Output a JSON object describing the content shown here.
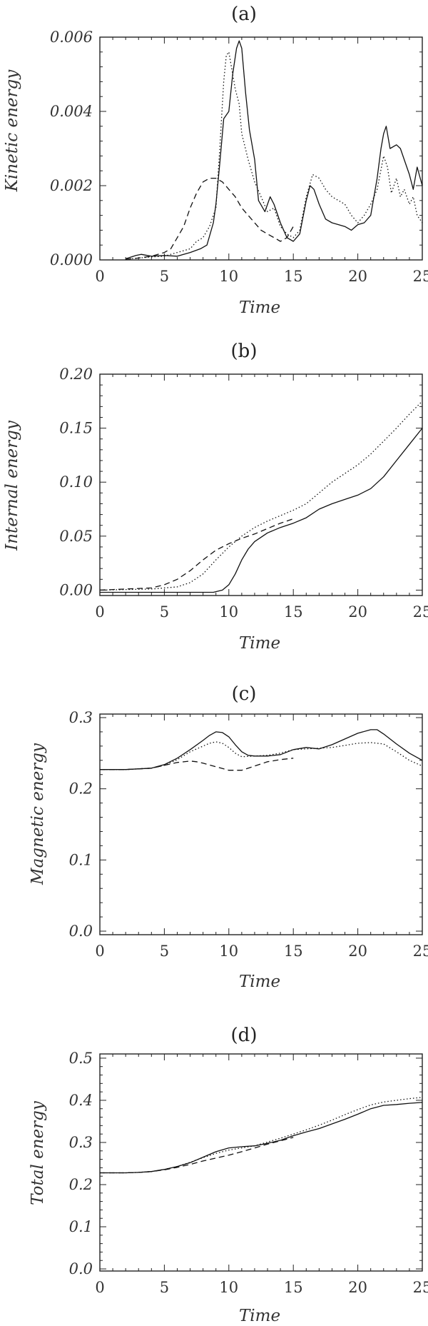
{
  "chart_data": [
    {
      "type": "line",
      "title": "(a)",
      "xlabel": "Time",
      "ylabel": "Kinetic energy",
      "xlim": [
        0,
        25
      ],
      "ylim": [
        0,
        0.006
      ],
      "xticks": [
        "0",
        "5",
        "10",
        "15",
        "20",
        "25"
      ],
      "yticks": [
        "0.000",
        "0.002",
        "0.004",
        "0.006"
      ],
      "series": [
        {
          "style": "solid",
          "x": [
            2.0,
            2.8,
            3.2,
            4.0,
            5.0,
            6.0,
            7.0,
            7.8,
            8.3,
            8.8,
            9.0,
            9.3,
            9.6,
            10.0,
            10.3,
            10.6,
            10.8,
            11.0,
            11.3,
            11.6,
            12.0,
            12.3,
            12.8,
            13.2,
            13.5,
            14.0,
            14.5,
            15.0,
            15.5,
            16.0,
            16.3,
            16.6,
            17.0,
            17.5,
            18.0,
            18.5,
            19.0,
            19.5,
            20.0,
            20.5,
            21.0,
            21.5,
            21.8,
            22.0,
            22.2,
            22.5,
            23.0,
            23.3,
            23.6,
            24.0,
            24.3,
            24.6,
            25.0
          ],
          "y": [
            3e-05,
            0.00012,
            0.00015,
            0.0001,
            0.00012,
            0.0001,
            0.0002,
            0.0003,
            0.0004,
            0.001,
            0.0015,
            0.0026,
            0.0038,
            0.004,
            0.005,
            0.0057,
            0.0059,
            0.0057,
            0.0045,
            0.0035,
            0.0027,
            0.0016,
            0.0013,
            0.0017,
            0.0015,
            0.001,
            0.0006,
            0.0005,
            0.0007,
            0.0016,
            0.002,
            0.0019,
            0.0015,
            0.0011,
            0.001,
            0.00095,
            0.0009,
            0.0008,
            0.00095,
            0.001,
            0.0012,
            0.0022,
            0.003,
            0.0034,
            0.0036,
            0.003,
            0.0031,
            0.003,
            0.0027,
            0.0023,
            0.0019,
            0.0025,
            0.002
          ]
        },
        {
          "style": "dotted",
          "x": [
            2.0,
            3.0,
            4.0,
            5.0,
            6.0,
            7.0,
            7.5,
            8.0,
            8.5,
            9.0,
            9.3,
            9.6,
            9.8,
            10.0,
            10.2,
            10.5,
            10.8,
            11.0,
            11.5,
            12.0,
            12.5,
            13.0,
            13.5,
            14.0,
            14.5,
            15.0,
            15.5,
            16.0,
            16.5,
            17.0,
            17.5,
            18.0,
            18.5,
            19.0,
            19.5,
            20.0,
            20.5,
            21.0,
            21.5,
            22.0,
            22.3,
            22.6,
            23.0,
            23.3,
            23.6,
            24.0,
            24.3,
            24.6,
            25.0
          ],
          "y": [
            2e-05,
            5e-05,
            8e-05,
            0.0001,
            0.0002,
            0.0003,
            0.0005,
            0.0006,
            0.0009,
            0.0014,
            0.003,
            0.0048,
            0.0055,
            0.0056,
            0.0052,
            0.0046,
            0.0042,
            0.0034,
            0.0027,
            0.0021,
            0.0017,
            0.0013,
            0.0014,
            0.0009,
            0.0007,
            0.0006,
            0.0008,
            0.0017,
            0.0023,
            0.0022,
            0.0019,
            0.0017,
            0.0016,
            0.0015,
            0.0012,
            0.001,
            0.0012,
            0.0015,
            0.0019,
            0.0028,
            0.0025,
            0.0018,
            0.0022,
            0.0017,
            0.0019,
            0.0015,
            0.0017,
            0.0012,
            0.001
          ]
        },
        {
          "style": "dashed",
          "x": [
            2.0,
            3.0,
            4.0,
            5.0,
            5.5,
            6.0,
            6.5,
            7.0,
            7.5,
            8.0,
            8.5,
            9.0,
            9.5,
            10.0,
            10.5,
            11.0,
            11.5,
            12.0,
            12.5,
            13.0,
            13.5,
            14.0,
            14.5,
            15.0
          ],
          "y": [
            2e-05,
            5e-05,
            0.0001,
            0.0002,
            0.0003,
            0.0006,
            0.0009,
            0.0014,
            0.0018,
            0.0021,
            0.0022,
            0.0022,
            0.0021,
            0.0019,
            0.0017,
            0.0014,
            0.0012,
            0.001,
            0.0008,
            0.0007,
            0.0006,
            0.0005,
            0.0006,
            0.0009
          ]
        }
      ]
    },
    {
      "type": "line",
      "title": "(b)",
      "xlabel": "Time",
      "ylabel": "Internal energy",
      "xlim": [
        0,
        25
      ],
      "ylim": [
        -0.005,
        0.2
      ],
      "xticks": [
        "0",
        "5",
        "10",
        "15",
        "20",
        "25"
      ],
      "yticks": [
        "0.00",
        "0.05",
        "0.10",
        "0.15",
        "0.20"
      ],
      "series": [
        {
          "style": "solid",
          "x": [
            0,
            4,
            8,
            8.8,
            9.5,
            10,
            10.5,
            11,
            11.5,
            12,
            13,
            14,
            15,
            16,
            17,
            18,
            19,
            20,
            21,
            22,
            23,
            24,
            25
          ],
          "y": [
            -0.002,
            -0.002,
            -0.002,
            -0.002,
            0.0,
            0.005,
            0.015,
            0.028,
            0.038,
            0.045,
            0.053,
            0.058,
            0.062,
            0.067,
            0.075,
            0.08,
            0.084,
            0.088,
            0.094,
            0.105,
            0.12,
            0.135,
            0.15
          ]
        },
        {
          "style": "dotted",
          "x": [
            0,
            4,
            6,
            7,
            8,
            9,
            10,
            11,
            12,
            13,
            14,
            15,
            16,
            17,
            18,
            19,
            20,
            21,
            22,
            23,
            24,
            25
          ],
          "y": [
            0.0,
            0.001,
            0.003,
            0.007,
            0.015,
            0.028,
            0.04,
            0.05,
            0.058,
            0.064,
            0.069,
            0.074,
            0.08,
            0.09,
            0.1,
            0.108,
            0.116,
            0.126,
            0.138,
            0.15,
            0.163,
            0.175
          ]
        },
        {
          "style": "dashed",
          "x": [
            0,
            4,
            5,
            6,
            7,
            8,
            9,
            10,
            11,
            12,
            13,
            14,
            15
          ],
          "y": [
            0.0,
            0.002,
            0.005,
            0.01,
            0.018,
            0.028,
            0.037,
            0.043,
            0.048,
            0.052,
            0.057,
            0.062,
            0.066
          ]
        }
      ]
    },
    {
      "type": "line",
      "title": "(c)",
      "xlabel": "Time",
      "ylabel": "Magnetic energy",
      "xlim": [
        0,
        25
      ],
      "ylim": [
        -0.005,
        0.305
      ],
      "xticks": [
        "0",
        "5",
        "10",
        "15",
        "20",
        "25"
      ],
      "yticks": [
        "0.0",
        "0.1",
        "0.2",
        "0.3"
      ],
      "series": [
        {
          "style": "solid",
          "x": [
            0,
            2,
            4,
            5,
            6,
            7,
            8,
            8.5,
            9,
            9.5,
            10,
            10.5,
            11,
            11.5,
            12,
            13,
            14,
            15,
            16,
            17,
            18,
            19,
            20,
            21,
            21.5,
            22,
            23,
            24,
            25
          ],
          "y": [
            0.227,
            0.227,
            0.229,
            0.234,
            0.243,
            0.255,
            0.268,
            0.275,
            0.28,
            0.279,
            0.273,
            0.262,
            0.252,
            0.247,
            0.246,
            0.246,
            0.248,
            0.255,
            0.258,
            0.256,
            0.262,
            0.27,
            0.278,
            0.283,
            0.283,
            0.277,
            0.263,
            0.25,
            0.24
          ]
        },
        {
          "style": "dotted",
          "x": [
            0,
            2,
            4,
            5,
            6,
            7,
            8,
            8.5,
            9,
            9.5,
            10,
            10.5,
            11,
            12,
            13,
            14,
            15,
            16,
            17,
            18,
            19,
            20,
            21,
            22,
            23,
            24,
            25
          ],
          "y": [
            0.227,
            0.227,
            0.229,
            0.233,
            0.241,
            0.252,
            0.26,
            0.264,
            0.266,
            0.264,
            0.258,
            0.25,
            0.245,
            0.246,
            0.247,
            0.25,
            0.255,
            0.256,
            0.257,
            0.258,
            0.261,
            0.264,
            0.265,
            0.263,
            0.252,
            0.24,
            0.232
          ]
        },
        {
          "style": "dashed",
          "x": [
            0,
            2,
            4,
            5,
            6,
            7,
            7.5,
            8,
            9,
            10,
            11,
            12,
            13,
            14,
            15
          ],
          "y": [
            0.227,
            0.227,
            0.229,
            0.233,
            0.237,
            0.239,
            0.238,
            0.236,
            0.231,
            0.226,
            0.226,
            0.232,
            0.238,
            0.241,
            0.243
          ]
        }
      ]
    },
    {
      "type": "line",
      "title": "(d)",
      "xlabel": "Time",
      "ylabel": "Total energy",
      "xlim": [
        0,
        25
      ],
      "ylim": [
        -0.005,
        0.51
      ],
      "xticks": [
        "0",
        "5",
        "10",
        "15",
        "20",
        "25"
      ],
      "yticks": [
        "0.0",
        "0.1",
        "0.2",
        "0.3",
        "0.4",
        "0.5"
      ],
      "series": [
        {
          "style": "solid",
          "x": [
            0,
            2,
            3,
            4,
            5,
            6,
            7,
            8,
            9,
            10,
            11,
            12,
            13,
            14,
            15,
            16,
            17,
            18,
            19,
            20,
            21,
            22,
            23,
            24,
            25
          ],
          "y": [
            0.228,
            0.228,
            0.229,
            0.231,
            0.236,
            0.243,
            0.252,
            0.265,
            0.278,
            0.287,
            0.29,
            0.292,
            0.298,
            0.305,
            0.316,
            0.325,
            0.333,
            0.344,
            0.355,
            0.367,
            0.38,
            0.388,
            0.39,
            0.393,
            0.395
          ]
        },
        {
          "style": "dotted",
          "x": [
            0,
            2,
            3,
            4,
            5,
            6,
            7,
            8,
            9,
            10,
            11,
            12,
            13,
            14,
            15,
            16,
            17,
            18,
            19,
            20,
            21,
            22,
            23,
            24,
            25
          ],
          "y": [
            0.228,
            0.228,
            0.229,
            0.231,
            0.236,
            0.243,
            0.253,
            0.264,
            0.274,
            0.282,
            0.287,
            0.292,
            0.301,
            0.31,
            0.32,
            0.33,
            0.341,
            0.353,
            0.366,
            0.378,
            0.389,
            0.396,
            0.4,
            0.404,
            0.407
          ]
        },
        {
          "style": "dashed",
          "x": [
            0,
            2,
            3,
            4,
            5,
            6,
            7,
            8,
            9,
            10,
            11,
            12,
            13,
            14,
            15
          ],
          "y": [
            0.228,
            0.228,
            0.229,
            0.231,
            0.235,
            0.241,
            0.248,
            0.256,
            0.263,
            0.27,
            0.278,
            0.287,
            0.296,
            0.304,
            0.312
          ]
        }
      ]
    }
  ]
}
